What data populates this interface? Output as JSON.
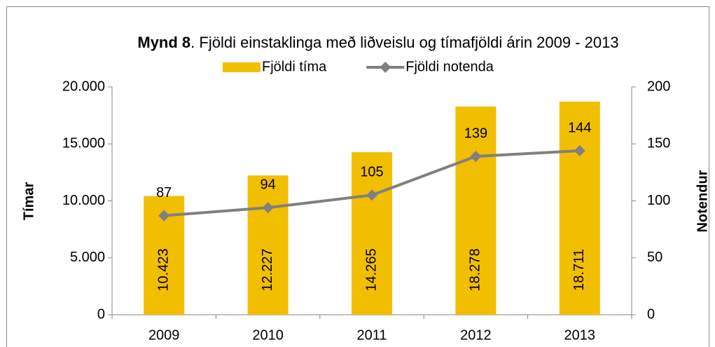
{
  "chart_data": {
    "type": "bar_line",
    "title": [
      "Mynd 8",
      ". Fjöldi einstaklinga með liðveislu og tímafjöldi árin 2009 - 2013"
    ],
    "ylabel": "Tímar",
    "y2label": "Notendur",
    "categories": [
      "2009",
      "2010",
      "2011",
      "2012",
      "2013"
    ],
    "series": [
      {
        "name": "Fjöldi tíma",
        "type": "bar",
        "color": "#f2be00",
        "axis": "y",
        "values": [
          10423,
          12227,
          14265,
          18278,
          18711
        ],
        "value_labels": [
          "10.423",
          "12.227",
          "14.265",
          "18.278",
          "18.711"
        ]
      },
      {
        "name": "Fjöldi notenda",
        "type": "line",
        "color": "#808080",
        "axis": "y2",
        "values": [
          87,
          94,
          105,
          139,
          144
        ]
      }
    ],
    "ylim": [
      0,
      20000
    ],
    "yticks": [
      0,
      {
        "value": 5000,
        "label": "5.000"
      },
      {
        "value": 10000,
        "label": "10.000"
      },
      {
        "value": 15000,
        "label": "15.000"
      },
      {
        "value": 20000,
        "label": "20.000"
      }
    ],
    "y2lim": [
      0,
      200
    ],
    "y2ticks": [
      0,
      50,
      100,
      150,
      200
    ],
    "legend": "top"
  }
}
